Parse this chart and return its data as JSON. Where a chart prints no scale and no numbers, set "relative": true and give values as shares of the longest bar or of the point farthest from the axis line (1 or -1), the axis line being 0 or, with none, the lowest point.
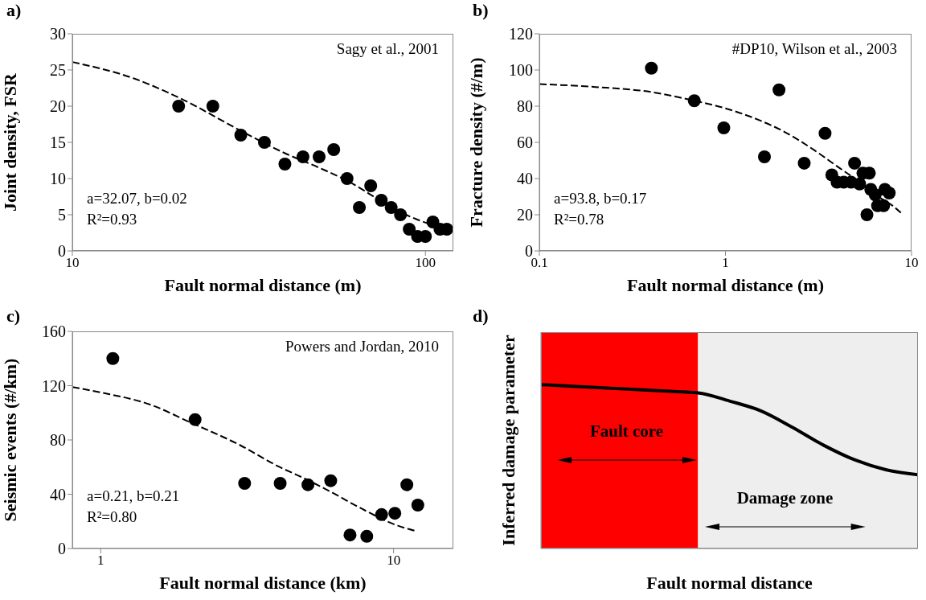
{
  "chart_data": [
    {
      "type": "scatter",
      "title": "a)",
      "xlabel": "Fault normal distance (m)",
      "ylabel": "Joint density, FSR",
      "log": "x",
      "xlim": [
        10,
        120
      ],
      "xticks": [
        10,
        100
      ],
      "ylim": [
        0,
        30
      ],
      "yticks": [
        0,
        5,
        10,
        15,
        20,
        25,
        30
      ],
      "annotations": [
        "Sagy et al., 2001",
        "a=32.07, b=0.02",
        "R²=0.93"
      ],
      "series": [
        {
          "marker": "circle",
          "color": "#000000",
          "x": [
            20,
            25,
            30,
            35,
            40,
            45,
            50,
            55,
            60,
            65,
            70,
            75,
            80,
            85,
            90,
            95,
            100,
            105,
            110,
            115
          ],
          "values": [
            20,
            20,
            16,
            15,
            12,
            13,
            13,
            14,
            10,
            6,
            9,
            7,
            6,
            5,
            3,
            2,
            2,
            4,
            3,
            3
          ]
        },
        {
          "type": "line",
          "marker": "none",
          "line_style": "dashed",
          "color": "#000000",
          "x": [
            10,
            15,
            20,
            30,
            40,
            50,
            60,
            75,
            90,
            103
          ],
          "values": [
            26.1,
            23.8,
            21.2,
            16.6,
            13.5,
            11.5,
            9.7,
            6.9,
            4.8,
            3.7
          ]
        }
      ]
    },
    {
      "type": "scatter",
      "title": "b)",
      "xlabel": "Fault normal distance (m)",
      "ylabel": "Fracture density (#/m)",
      "log": "x",
      "xlim": [
        0.1,
        10
      ],
      "xticks": [
        0.1,
        1,
        10
      ],
      "ylim": [
        0,
        120
      ],
      "yticks": [
        0,
        20,
        40,
        60,
        80,
        100,
        120
      ],
      "annotations": [
        "#DP10, Wilson et al., 2003",
        "a=93.8, b=0.17",
        "R²=0.78"
      ],
      "series": [
        {
          "marker": "circle",
          "color": "#000000",
          "x": [
            0.4,
            0.68,
            0.98,
            1.62,
            1.94,
            2.65,
            3.43,
            3.73,
            3.98,
            4.32,
            4.73,
            4.94,
            5.26,
            5.48,
            5.76,
            5.93,
            6.04,
            6.38,
            6.57,
            7.08,
            7.19,
            7.59
          ],
          "values": [
            101,
            83,
            68,
            52,
            89,
            48.5,
            65,
            42,
            38,
            38,
            38,
            48.5,
            37,
            43,
            20,
            43,
            34,
            31,
            25,
            25,
            34,
            32
          ]
        },
        {
          "type": "line",
          "marker": "none",
          "line_style": "dashed",
          "color": "#000000",
          "x": [
            0.1,
            0.2,
            0.4,
            0.68,
            1,
            1.5,
            2,
            3,
            4,
            5,
            6,
            8,
            9
          ],
          "values": [
            92.2,
            90.6,
            87.8,
            83,
            78.8,
            72.5,
            66.7,
            55.7,
            46.6,
            39.6,
            32.8,
            24.6,
            20
          ]
        }
      ]
    },
    {
      "type": "scatter",
      "title": "c)",
      "xlabel": "Fault normal distance (km)",
      "ylabel": "Seismic events (#/km)",
      "log": "x",
      "xlim": [
        0.8,
        16
      ],
      "xticks": [
        1,
        10
      ],
      "ylim": [
        0,
        160
      ],
      "yticks": [
        0,
        40,
        80,
        120,
        160
      ],
      "annotations": [
        "Powers and Jordan, 2010",
        "a=0.21, b=0.21",
        "R²=0.80"
      ],
      "series": [
        {
          "marker": "circle",
          "color": "#000000",
          "x": [
            1.1,
            2.1,
            3.1,
            4.1,
            5.1,
            6.1,
            7.1,
            8.1,
            9.1,
            10.1,
            11.1,
            12.1
          ],
          "values": [
            140,
            95,
            48,
            48,
            47,
            50,
            10,
            9,
            25,
            26,
            47,
            32
          ]
        },
        {
          "type": "line",
          "marker": "none",
          "line_style": "dashed",
          "color": "#000000",
          "x": [
            0.8,
            1,
            1.5,
            2,
            3,
            4,
            5,
            6,
            8,
            10,
            12
          ],
          "values": [
            119,
            115,
            105.5,
            93.4,
            76,
            61,
            51.3,
            42.6,
            28,
            18,
            12.7
          ]
        }
      ]
    },
    {
      "type": "line",
      "title": "d)",
      "xlabel": "Fault normal distance",
      "ylabel": "Inferred damage parameter",
      "relative": true,
      "categories": [
        null,
        null,
        null,
        null,
        null,
        null,
        null,
        null,
        null,
        null,
        null,
        null,
        null
      ],
      "annotations": [
        "Fault core",
        "Damage zone"
      ],
      "series": [
        {
          "color": "#000000",
          "values": [
            1,
            0.99,
            0.98,
            0.97,
            0.96,
            0.95,
            0.9,
            0.84,
            0.74,
            0.63,
            0.54,
            0.48,
            0.45
          ]
        }
      ]
    }
  ]
}
